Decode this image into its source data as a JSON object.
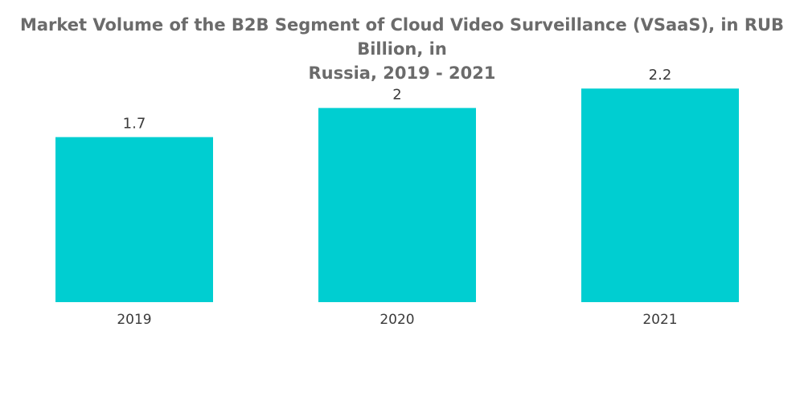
{
  "chart_data": {
    "type": "bar",
    "title": "Market Volume of the B2B Segment of Cloud Video Surveillance (VSaaS), in RUB Billion, in Russia, 2019 - 2021",
    "title_lines": [
      "Market Volume of the B2B Segment of Cloud Video Surveillance (VSaaS), in RUB Billion, in",
      "Russia, 2019 - 2021"
    ],
    "categories": [
      "2019",
      "2020",
      "2021"
    ],
    "values": [
      1.7,
      2,
      2.2
    ],
    "value_labels": [
      "1.7",
      "2",
      "2.2"
    ],
    "xlabel": "",
    "ylabel": "",
    "ylim": [
      0,
      2.45
    ],
    "grid": false,
    "legend": "none",
    "bar_color": "#00ced1"
  }
}
